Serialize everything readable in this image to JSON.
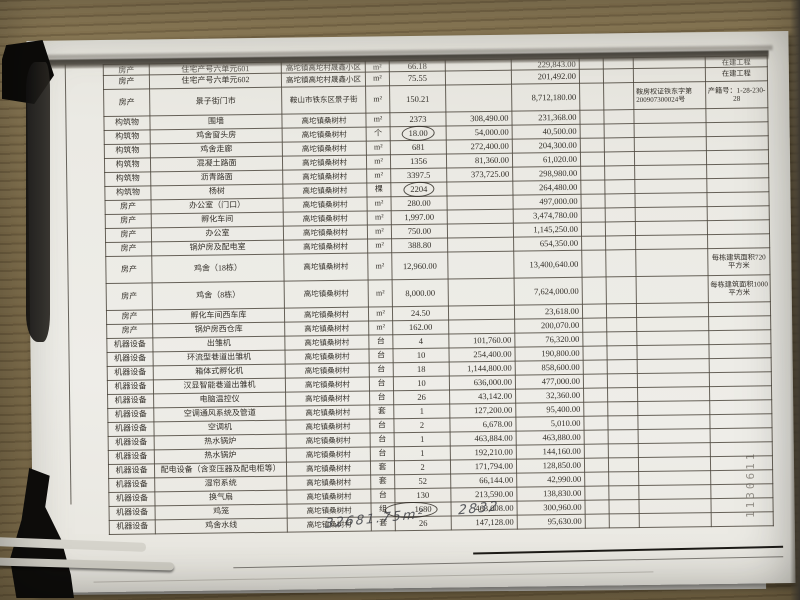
{
  "photo": {
    "handwritten_note_1": "32681.75m²",
    "handwritten_note_2": "2832",
    "side_stamp": "1130611"
  },
  "colors": {
    "paper": "#ebeae4",
    "desk_wood": "#83724f",
    "table_line": "#48423a",
    "ink": "#34302a",
    "pen_circle": "#322e28",
    "handwriting_ink": "#3e4046"
  },
  "document": {
    "description": "photographed asset valuation table, header row cut off at top",
    "rows": [
      {
        "category": "房产",
        "name": "住宅产号六单元601",
        "location": "高坨镇高坨村晟鑫小区",
        "unit": "m²",
        "quantity": "66.18",
        "amount2": "229,843.00",
        "remark": "在建工程",
        "partial": true
      },
      {
        "category": "房产",
        "name": "住宅产号六单元602",
        "location": "高坨镇高坨村晟鑫小区",
        "unit": "m²",
        "quantity": "75.55",
        "amount2": "201,492.00",
        "remark": "在建工程"
      },
      {
        "category": "房产",
        "name": "景子街门市",
        "location": "鞍山市铁东区景子街",
        "unit": "m²",
        "quantity": "150.21",
        "amount2": "8,712,180.00",
        "certificate": "鞍房权证铁东字第200907300024号",
        "remark": "产籍号：1-28-230-28",
        "tall": true
      },
      {
        "category": "构筑物",
        "name": "围墙",
        "location": "高坨镇桑树村",
        "unit": "m²",
        "quantity": "2373",
        "amount1": "308,490.00",
        "amount2": "231,368.00"
      },
      {
        "category": "构筑物",
        "name": "鸡舍窗头房",
        "location": "高坨镇桑树村",
        "unit": "个",
        "quantity": "18.00",
        "amount1": "54,000.00",
        "amount2": "40,500.00",
        "circle": "quantity"
      },
      {
        "category": "构筑物",
        "name": "鸡舍走廊",
        "location": "高坨镇桑树村",
        "unit": "m²",
        "quantity": "681",
        "amount1": "272,400.00",
        "amount2": "204,300.00"
      },
      {
        "category": "构筑物",
        "name": "混凝土路面",
        "location": "高坨镇桑树村",
        "unit": "m²",
        "quantity": "1356",
        "amount1": "81,360.00",
        "amount2": "61,020.00"
      },
      {
        "category": "构筑物",
        "name": "沥青路面",
        "location": "高坨镇桑树村",
        "unit": "m²",
        "quantity": "3397.5",
        "amount1": "373,725.00",
        "amount2": "298,980.00"
      },
      {
        "category": "构筑物",
        "name": "杨树",
        "location": "高坨镇桑树村",
        "unit": "棵",
        "quantity": "2204",
        "amount2": "264,480.00",
        "circle": "quantity"
      },
      {
        "category": "房产",
        "name": "办公室（门口）",
        "location": "高坨镇桑树村",
        "unit": "m²",
        "quantity": "280.00",
        "amount2": "497,000.00"
      },
      {
        "category": "房产",
        "name": "孵化车间",
        "location": "高坨镇桑树村",
        "unit": "m²",
        "quantity": "1,997.00",
        "amount2": "3,474,780.00"
      },
      {
        "category": "房产",
        "name": "办公室",
        "location": "高坨镇桑树村",
        "unit": "m²",
        "quantity": "750.00",
        "amount2": "1,145,250.00"
      },
      {
        "category": "房产",
        "name": "锅炉房及配电室",
        "location": "高坨镇桑树村",
        "unit": "m²",
        "quantity": "388.80",
        "amount2": "654,350.00"
      },
      {
        "category": "房产",
        "name": "鸡舍（18栋）",
        "location": "高坨镇桑树村",
        "unit": "m²",
        "quantity": "12,960.00",
        "amount2": "13,400,640.00",
        "remark": "每栋建筑面积720平方米",
        "tall": true
      },
      {
        "category": "房产",
        "name": "鸡舍（8栋）",
        "location": "高坨镇桑树村",
        "unit": "m²",
        "quantity": "8,000.00",
        "amount2": "7,624,000.00",
        "remark": "每栋建筑面积1000平方米",
        "tall": true
      },
      {
        "category": "房产",
        "name": "孵化车间西车库",
        "location": "高坨镇桑树村",
        "unit": "m²",
        "quantity": "24.50",
        "amount2": "23,618.00"
      },
      {
        "category": "房产",
        "name": "锅炉房西仓库",
        "location": "高坨镇桑树村",
        "unit": "m²",
        "quantity": "162.00",
        "amount2": "200,070.00"
      },
      {
        "category": "机器设备",
        "name": "出雏机",
        "location": "高坨镇桑树村",
        "unit": "台",
        "quantity": "4",
        "amount1": "101,760.00",
        "amount2": "76,320.00"
      },
      {
        "category": "机器设备",
        "name": "环流型巷道出雏机",
        "location": "高坨镇桑树村",
        "unit": "台",
        "quantity": "10",
        "amount1": "254,400.00",
        "amount2": "190,800.00"
      },
      {
        "category": "机器设备",
        "name": "箱体式孵化机",
        "location": "高坨镇桑树村",
        "unit": "台",
        "quantity": "18",
        "amount1": "1,144,800.00",
        "amount2": "858,600.00"
      },
      {
        "category": "机器设备",
        "name": "汉显智能巷道出雏机",
        "location": "高坨镇桑树村",
        "unit": "台",
        "quantity": "10",
        "amount1": "636,000.00",
        "amount2": "477,000.00"
      },
      {
        "category": "机器设备",
        "name": "电脑温控仪",
        "location": "高坨镇桑树村",
        "unit": "台",
        "quantity": "26",
        "amount1": "43,142.00",
        "amount2": "32,360.00"
      },
      {
        "category": "机器设备",
        "name": "空调通风系统及管道",
        "location": "高坨镇桑树村",
        "unit": "套",
        "quantity": "1",
        "amount1": "127,200.00",
        "amount2": "95,400.00"
      },
      {
        "category": "机器设备",
        "name": "空调机",
        "location": "高坨镇桑树村",
        "unit": "台",
        "quantity": "2",
        "amount1": "6,678.00",
        "amount2": "5,010.00"
      },
      {
        "category": "机器设备",
        "name": "热水锅炉",
        "location": "高坨镇桑树村",
        "unit": "台",
        "quantity": "1",
        "amount1": "463,884.00",
        "amount2": "463,880.00"
      },
      {
        "category": "机器设备",
        "name": "热水锅炉",
        "location": "高坨镇桑树村",
        "unit": "台",
        "quantity": "1",
        "amount1": "192,210.00",
        "amount2": "144,160.00"
      },
      {
        "category": "机器设备",
        "name": "配电设备（含变压器及配电柜等）",
        "location": "高坨镇桑树村",
        "unit": "套",
        "quantity": "2",
        "amount1": "171,794.00",
        "amount2": "128,850.00"
      },
      {
        "category": "机器设备",
        "name": "湿帘系统",
        "location": "高坨镇桑树村",
        "unit": "套",
        "quantity": "52",
        "amount1": "66,144.00",
        "amount2": "42,990.00"
      },
      {
        "category": "机器设备",
        "name": "换气扇",
        "location": "高坨镇桑树村",
        "unit": "台",
        "quantity": "130",
        "amount1": "213,590.00",
        "amount2": "138,830.00"
      },
      {
        "category": "机器设备",
        "name": "鸡笼",
        "location": "高坨镇桑树村",
        "unit": "组",
        "quantity": "1680",
        "amount1": "463,008.00",
        "amount2": "300,960.00",
        "circle": "unit-quantity"
      },
      {
        "category": "机器设备",
        "name": "鸡舍水线",
        "location": "高坨镇桑树村",
        "unit": "套",
        "quantity": "26",
        "amount1": "147,128.00",
        "amount2": "95,630.00"
      }
    ]
  }
}
